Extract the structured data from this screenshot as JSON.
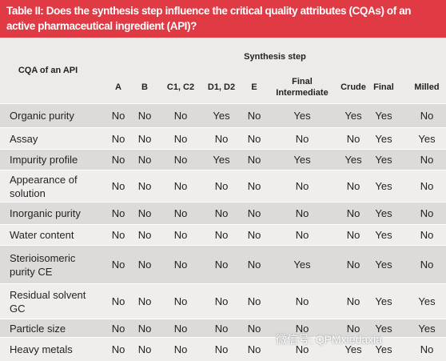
{
  "title": "Table II: Does the synthesis step influence the critical quality attributes (CQAs) of an active pharmaceutical ingredient (API)?",
  "table": {
    "corner": "CQA of an API",
    "group_header": "Synthesis step",
    "columns": [
      "A",
      "B",
      "C1, C2",
      "D1, D2",
      "E",
      "Final Intermediate",
      "Crude",
      "Final",
      "Milled"
    ],
    "rows": [
      [
        "Organic purity",
        "No",
        "No",
        "No",
        "Yes",
        "No",
        "Yes",
        "Yes",
        "Yes",
        "No"
      ],
      [
        "Assay",
        "No",
        "No",
        "No",
        "No",
        "No",
        "No",
        "No",
        "Yes",
        "Yes"
      ],
      [
        "Impurity profile",
        "No",
        "No",
        "No",
        "Yes",
        "No",
        "Yes",
        "Yes",
        "Yes",
        "No"
      ],
      [
        "Appearance of solution",
        "No",
        "No",
        "No",
        "No",
        "No",
        "No",
        "No",
        "Yes",
        "No"
      ],
      [
        "Inorganic purity",
        "No",
        "No",
        "No",
        "No",
        "No",
        "No",
        "No",
        "Yes",
        "No"
      ],
      [
        "Water content",
        "No",
        "No",
        "No",
        "No",
        "No",
        "No",
        "No",
        "Yes",
        "No"
      ],
      [
        "Sterioisomeric purity CE",
        "No",
        "No",
        "No",
        "No",
        "No",
        "Yes",
        "No",
        "Yes",
        "No"
      ],
      [
        "Residual solvent GC",
        "No",
        "No",
        "No",
        "No",
        "No",
        "No",
        "No",
        "Yes",
        "Yes"
      ],
      [
        "Particle size",
        "No",
        "No",
        "No",
        "No",
        "No",
        "No",
        "No",
        "Yes",
        "Yes"
      ],
      [
        "Heavy metals",
        "No",
        "No",
        "No",
        "No",
        "No",
        "No",
        "Yes",
        "Yes",
        "No"
      ]
    ]
  },
  "watermark": "微信号: QPMxiedaxia"
}
